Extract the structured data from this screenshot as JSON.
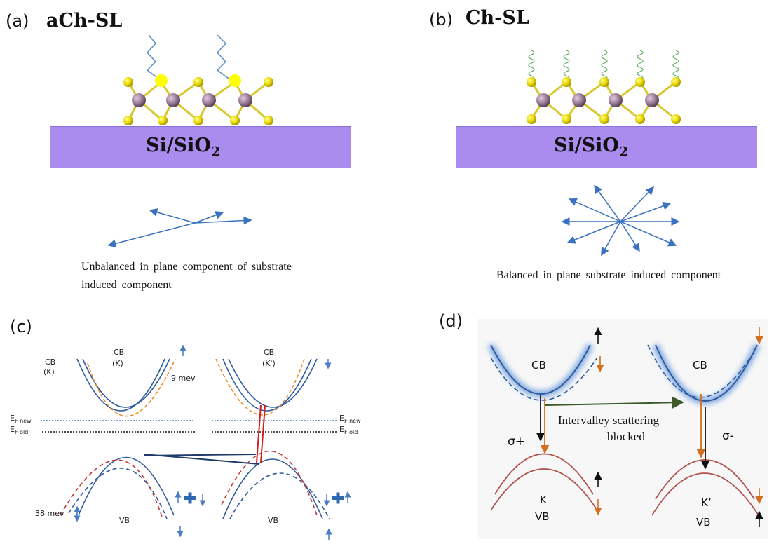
{
  "panel_a": {
    "label": "(a)",
    "title": "aCh-SL",
    "substrate_text": "Si/SiO",
    "substrate_sub": "2",
    "caption_line1": "Unbalanced in plane component of substrate",
    "caption_line2": "induced component"
  },
  "panel_b": {
    "label": "(b)",
    "title": "Ch-SL",
    "substrate_text": "Si/SiO",
    "substrate_sub": "2",
    "caption": "Balanced in plane substrate induced component"
  },
  "panel_c": {
    "label": "(c)",
    "cb_k_left": "CB",
    "cb_k_left_sub": "(K)",
    "cb_k_mid": "CB",
    "cb_k_mid_sub": "(K)",
    "cb_kp": "CB",
    "cb_kp_sub": "(K')",
    "split_cb": "9 mev",
    "ef_new_left": "E",
    "ef_new_left_sub": "F new",
    "ef_old_left": "E",
    "ef_old_left_sub": "F old",
    "ef_new_right": "E",
    "ef_new_right_sub": "F new",
    "ef_old_right": "E",
    "ef_old_right_sub": "F old",
    "split_vb": "38 mev",
    "vb_left": "VB",
    "vb_right": "VB"
  },
  "panel_d": {
    "label": "(d)",
    "cb_left": "CB",
    "cb_right": "CB",
    "scatter_line1": "Intervalley scattering",
    "scatter_line2": "blocked",
    "sigma_plus": "σ+",
    "sigma_minus": "σ-",
    "k_left": "K",
    "vb_left": "VB",
    "k_right": "K’",
    "vb_right": "VB"
  },
  "colors": {
    "substrate": "#a98cee",
    "sulfur": "#f0e020",
    "metal": "#9a7b96",
    "band_blue": "#2f5aa0",
    "band_orange": "#f08a2a",
    "band_red": "#c03a3a",
    "vb_brown": "#b0504a",
    "arrow_blue": "#4a7cc8"
  }
}
